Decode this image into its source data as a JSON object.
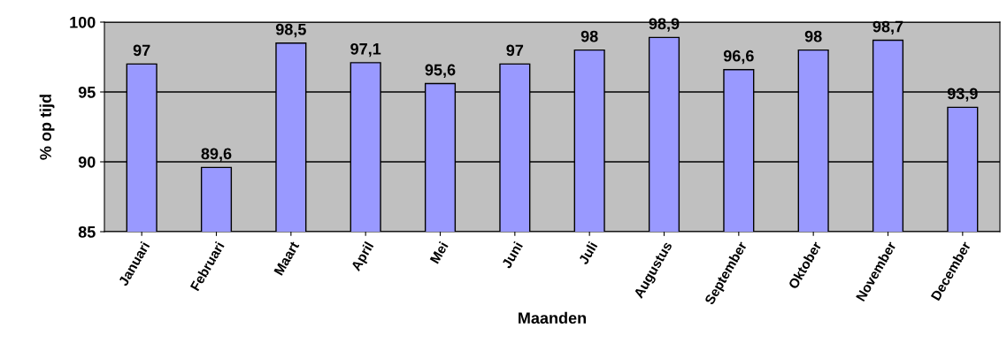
{
  "chart_data": {
    "type": "bar",
    "xlabel": "Maanden",
    "ylabel": "% op tijd",
    "categories": [
      "Januari",
      "Februari",
      "Maart",
      "April",
      "Mei",
      "Juni",
      "Juli",
      "Augustus",
      "September",
      "Oktober",
      "November",
      "December"
    ],
    "values": [
      97,
      89.6,
      98.5,
      97.1,
      95.6,
      97,
      98,
      98.9,
      96.6,
      98,
      98.7,
      93.9
    ],
    "value_labels": [
      "97",
      "89,6",
      "98,5",
      "97,1",
      "95,6",
      "97",
      "98",
      "98,9",
      "96,6",
      "98",
      "98,7",
      "93,9"
    ],
    "color": "#9999ff",
    "ylim": [
      85,
      100
    ],
    "yticks": [
      85,
      90,
      95,
      100
    ],
    "grid": "y"
  }
}
